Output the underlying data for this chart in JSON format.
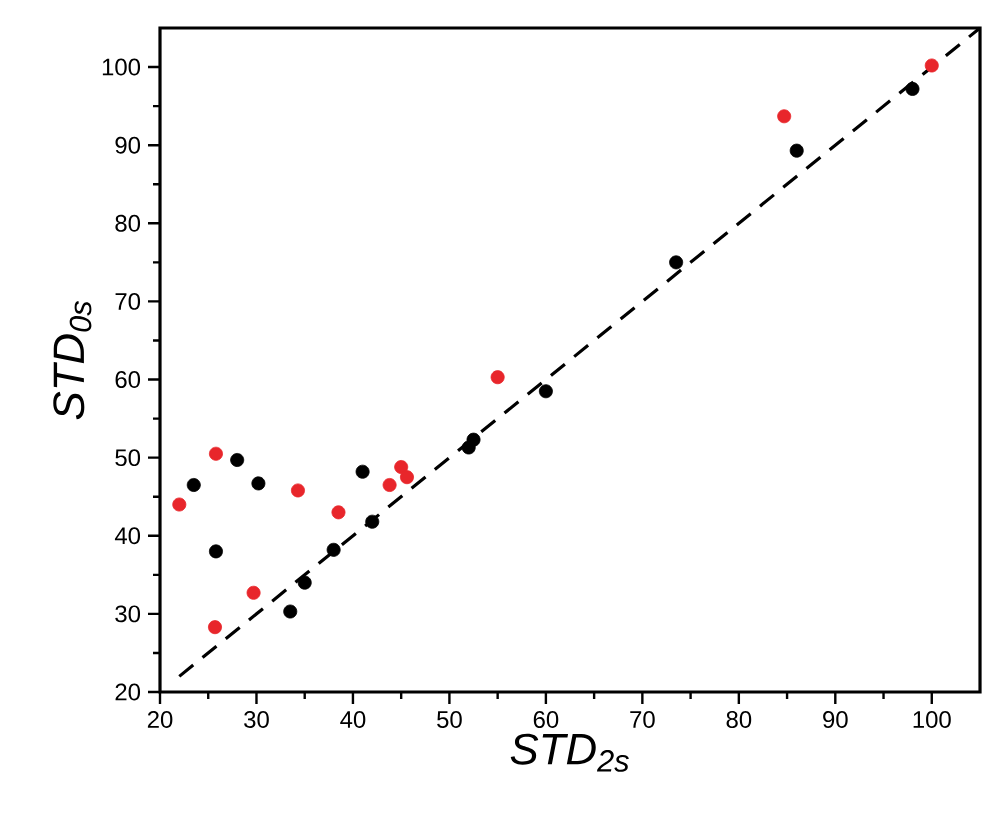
{
  "chart_data": {
    "type": "scatter",
    "xlabel": "STD$_{2s}$",
    "ylabel": "STD$_{0s}$",
    "xlim": [
      20,
      105
    ],
    "ylim": [
      20,
      105
    ],
    "xticks": [
      20,
      30,
      40,
      50,
      60,
      70,
      80,
      90,
      100
    ],
    "yticks": [
      20,
      30,
      40,
      50,
      60,
      70,
      80,
      90,
      100
    ],
    "marker": "circle",
    "series": [
      {
        "color": "#000000",
        "x": [
          23.5,
          25.8,
          28,
          30.2,
          33.5,
          35,
          38,
          41,
          42,
          52,
          52.5,
          60,
          73.5,
          86,
          98
        ],
        "values": [
          46.5,
          38,
          49.7,
          46.7,
          30.3,
          34,
          38.2,
          48.2,
          41.8,
          51.3,
          52.3,
          58.5,
          75,
          89.3,
          97.2
        ]
      },
      {
        "color": "#e8262b",
        "x": [
          22,
          25.8,
          25.7,
          29.7,
          34.3,
          38.5,
          43.8,
          45,
          45.6,
          55,
          84.7,
          100
        ],
        "values": [
          44,
          50.5,
          28.3,
          32.7,
          45.8,
          43,
          46.5,
          48.8,
          47.5,
          60.3,
          93.7,
          100.2
        ]
      },
      {
        "type": "line",
        "color": "#000000",
        "line_style": "dashed",
        "marker": "none",
        "x": [
          22,
          105
        ],
        "values": [
          22,
          105
        ]
      }
    ]
  }
}
